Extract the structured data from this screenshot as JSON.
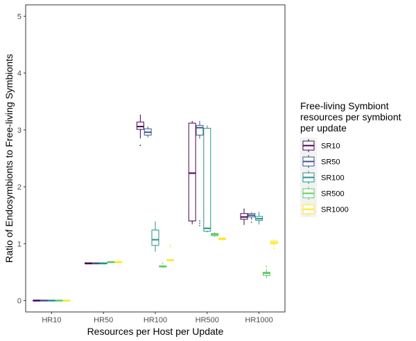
{
  "chart_data": {
    "type": "boxplot",
    "title": "",
    "xlabel": "Resources per Host per Update",
    "ylabel": "Ratio of Endosymbionts to Free-living Symbionts",
    "ylim": [
      -0.2,
      5.2
    ],
    "y_ticks": [
      "0",
      "1",
      "2",
      "3",
      "4",
      "5"
    ],
    "grid": false,
    "legend_position": "right",
    "legend_title_lines": [
      "Free-living Symbiont",
      "resources per symbiont",
      "per update"
    ],
    "categories": [
      "HR10",
      "HR50",
      "HR100",
      "HR500",
      "HR1000"
    ],
    "series": [
      {
        "name": "SR10",
        "color": "#440154",
        "boxes": [
          {
            "category": "HR10",
            "min": 0,
            "q1": 0,
            "median": 0,
            "q3": 0,
            "max": 0,
            "outliers": []
          },
          {
            "category": "HR50",
            "min": 0.65,
            "q1": 0.65,
            "median": 0.65,
            "q3": 0.66,
            "max": 0.67,
            "outliers": []
          },
          {
            "category": "HR100",
            "min": 2.85,
            "q1": 3.01,
            "median": 3.06,
            "q3": 3.14,
            "max": 3.27,
            "outliers": [
              2.73
            ]
          },
          {
            "category": "HR500",
            "min": 1.34,
            "q1": 1.4,
            "median": 2.24,
            "q3": 3.12,
            "max": 3.16,
            "outliers": []
          },
          {
            "category": "HR1000",
            "min": 1.33,
            "q1": 1.43,
            "median": 1.47,
            "q3": 1.53,
            "max": 1.62,
            "outliers": []
          }
        ]
      },
      {
        "name": "SR50",
        "color": "#3b528b",
        "boxes": [
          {
            "category": "HR10",
            "min": 0,
            "q1": 0,
            "median": 0,
            "q3": 0,
            "max": 0,
            "outliers": []
          },
          {
            "category": "HR50",
            "min": 0.65,
            "q1": 0.65,
            "median": 0.65,
            "q3": 0.66,
            "max": 0.67,
            "outliers": []
          },
          {
            "category": "HR100",
            "min": 2.87,
            "q1": 2.91,
            "median": 2.96,
            "q3": 3.02,
            "max": 3.06,
            "outliers": []
          },
          {
            "category": "HR500",
            "min": 2.85,
            "q1": 2.91,
            "median": 3.04,
            "q3": 3.08,
            "max": 3.16,
            "outliers": [
              1.4,
              1.36,
              1.32
            ]
          },
          {
            "category": "HR1000",
            "min": 1.42,
            "q1": 1.47,
            "median": 1.5,
            "q3": 1.53,
            "max": 1.55,
            "outliers": [
              1.38
            ]
          }
        ]
      },
      {
        "name": "SR100",
        "color": "#21908c",
        "boxes": [
          {
            "category": "HR10",
            "min": 0,
            "q1": 0,
            "median": 0,
            "q3": 0,
            "max": 0,
            "outliers": []
          },
          {
            "category": "HR50",
            "min": 0.65,
            "q1": 0.65,
            "median": 0.65,
            "q3": 0.66,
            "max": 0.67,
            "outliers": []
          },
          {
            "category": "HR100",
            "min": 0.86,
            "q1": 0.97,
            "median": 1.07,
            "q3": 1.24,
            "max": 1.39,
            "outliers": []
          },
          {
            "category": "HR500",
            "min": 1.2,
            "q1": 1.22,
            "median": 1.27,
            "q3": 3.03,
            "max": 3.08,
            "outliers": []
          },
          {
            "category": "HR1000",
            "min": 1.34,
            "q1": 1.41,
            "median": 1.44,
            "q3": 1.48,
            "max": 1.56,
            "outliers": []
          }
        ]
      },
      {
        "name": "SR500",
        "color": "#5dc863",
        "boxes": [
          {
            "category": "HR10",
            "min": 0,
            "q1": 0,
            "median": 0,
            "q3": 0,
            "max": 0,
            "outliers": []
          },
          {
            "category": "HR50",
            "min": 0.66,
            "q1": 0.67,
            "median": 0.68,
            "q3": 0.68,
            "max": 0.69,
            "outliers": []
          },
          {
            "category": "HR100",
            "min": 0.58,
            "q1": 0.59,
            "median": 0.6,
            "q3": 0.61,
            "max": 0.63,
            "outliers": [
              0.66
            ]
          },
          {
            "category": "HR500",
            "min": 1.12,
            "q1": 1.14,
            "median": 1.16,
            "q3": 1.18,
            "max": 1.2,
            "outliers": []
          },
          {
            "category": "HR1000",
            "min": 0.39,
            "q1": 0.44,
            "median": 0.48,
            "q3": 0.5,
            "max": 0.55,
            "outliers": [
              0.6
            ]
          }
        ]
      },
      {
        "name": "SR1000",
        "color": "#fde725",
        "boxes": [
          {
            "category": "HR10",
            "min": 0,
            "q1": 0,
            "median": 0,
            "q3": 0,
            "max": 0,
            "outliers": []
          },
          {
            "category": "HR50",
            "min": 0.66,
            "q1": 0.67,
            "median": 0.68,
            "q3": 0.68,
            "max": 0.73,
            "outliers": []
          },
          {
            "category": "HR100",
            "min": 0.69,
            "q1": 0.7,
            "median": 0.71,
            "q3": 0.72,
            "max": 0.73,
            "outliers": [
              0.95,
              0.98
            ]
          },
          {
            "category": "HR500",
            "min": 1.05,
            "q1": 1.07,
            "median": 1.09,
            "q3": 1.1,
            "max": 1.11,
            "outliers": []
          },
          {
            "category": "HR1000",
            "min": 0.96,
            "q1": 1.0,
            "median": 1.02,
            "q3": 1.05,
            "max": 1.08,
            "outliers": [
              0.92
            ]
          }
        ]
      }
    ]
  }
}
